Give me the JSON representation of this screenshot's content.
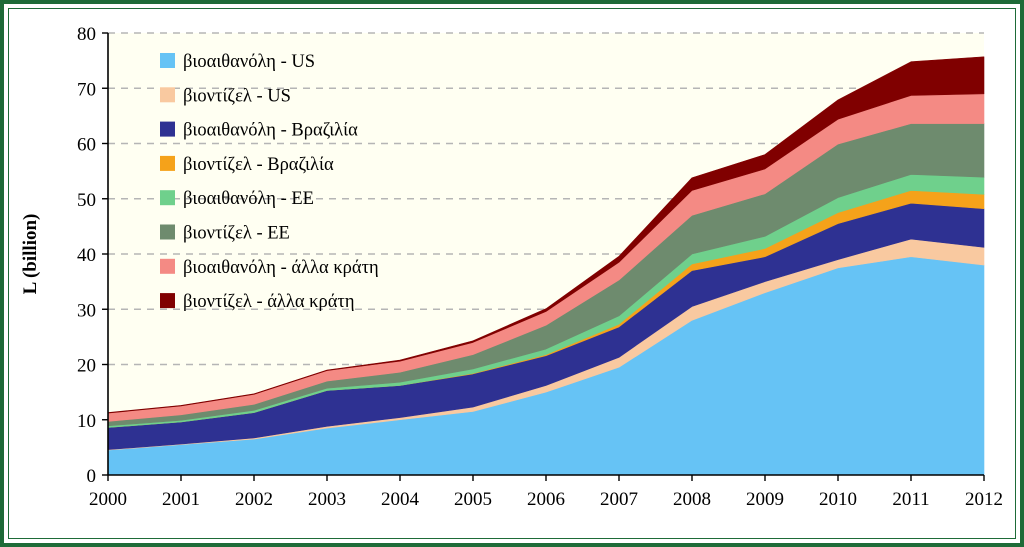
{
  "chart_data": {
    "type": "area",
    "stacked": true,
    "title": "",
    "xlabel": "",
    "ylabel": "L (billion)",
    "xlim": [
      2000,
      2012
    ],
    "ylim": [
      0,
      80
    ],
    "x_ticks": [
      "2000",
      "2001",
      "2002",
      "2003",
      "2004",
      "2005",
      "2006",
      "2007",
      "2008",
      "2009",
      "2010",
      "2011",
      "2012"
    ],
    "y_ticks": [
      "0",
      "10",
      "20",
      "30",
      "40",
      "50",
      "60",
      "70",
      "80"
    ],
    "grid": "horizontal dashed",
    "legend_position": "top-left",
    "x": [
      2000,
      2001,
      2002,
      2003,
      2004,
      2005,
      2006,
      2007,
      2008,
      2009,
      2010,
      2011,
      2012
    ],
    "series": [
      {
        "name": "βιοαιθανόλη - US",
        "color": "#66c3f5",
        "values": [
          4.5,
          5.5,
          6.5,
          8.5,
          10.0,
          11.5,
          15.0,
          19.5,
          28.0,
          33.0,
          37.5,
          39.5,
          38.0
        ]
      },
      {
        "name": "βιοντίζελ - US",
        "color": "#f9c9a0",
        "values": [
          0.1,
          0.1,
          0.2,
          0.3,
          0.4,
          0.8,
          1.2,
          1.8,
          2.5,
          2.0,
          1.5,
          3.2,
          3.2
        ]
      },
      {
        "name": "βιοαιθανόλη - Βραζιλία",
        "color": "#2e3192",
        "values": [
          4.0,
          4.0,
          4.6,
          6.5,
          5.8,
          6.0,
          5.4,
          5.5,
          6.5,
          4.5,
          6.5,
          6.5,
          7.0
        ]
      },
      {
        "name": "βιοντίζελ - Βραζιλία",
        "color": "#f5a21a",
        "values": [
          0.0,
          0.0,
          0.0,
          0.0,
          0.0,
          0.1,
          0.2,
          0.5,
          1.2,
          1.5,
          2.0,
          2.3,
          2.6
        ]
      },
      {
        "name": "βιοαιθανόλη - ΕΕ",
        "color": "#6fd08c",
        "values": [
          0.3,
          0.3,
          0.4,
          0.4,
          0.6,
          0.8,
          1.0,
          1.5,
          1.8,
          2.2,
          2.7,
          2.9,
          3.1
        ]
      },
      {
        "name": "βιοντίζελ - ΕΕ",
        "color": "#6e8b6e",
        "values": [
          0.8,
          1.0,
          1.1,
          1.3,
          1.8,
          2.6,
          4.3,
          6.5,
          7.0,
          7.7,
          9.7,
          9.2,
          9.7
        ]
      },
      {
        "name": "βιοαιθανόλη - άλλα κράτη",
        "color": "#f48a84",
        "values": [
          1.5,
          1.6,
          1.8,
          1.9,
          2.0,
          2.2,
          2.5,
          3.2,
          4.5,
          4.5,
          4.5,
          5.1,
          5.4
        ]
      },
      {
        "name": "βιοντίζελ - άλλα κράτη",
        "color": "#800000",
        "values": [
          0.1,
          0.1,
          0.1,
          0.1,
          0.2,
          0.3,
          0.5,
          1.1,
          2.3,
          2.6,
          3.5,
          6.1,
          6.7
        ]
      }
    ]
  }
}
